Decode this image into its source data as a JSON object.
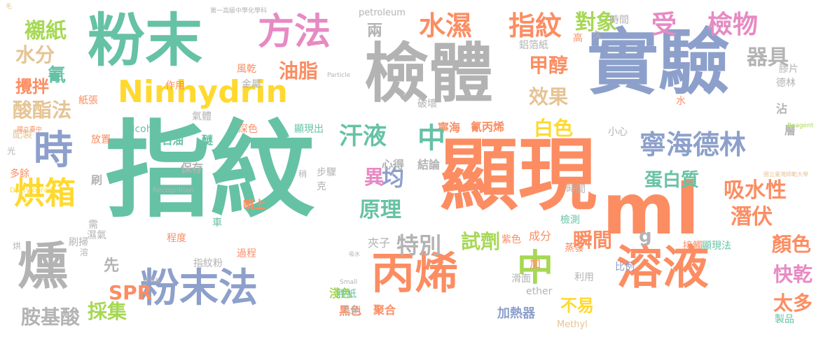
{
  "palette": {
    "green": "#66c2a5",
    "orange": "#fc8d62",
    "blue": "#8da0cb",
    "pink": "#e78ac3",
    "lime": "#a6d854",
    "yellow": "#ffd92f",
    "tan": "#e5c494",
    "gray": "#b3b3b3"
  },
  "words": [
    "指紋",
    "顯現",
    "實驗",
    "檢體",
    "粉末",
    "粉末法",
    "丙烯",
    "溶液",
    "ml",
    "中",
    "Ninhydrin",
    "方法",
    "時",
    "燻",
    "烘箱",
    "寧海德林",
    "水濕",
    "指紋",
    "受",
    "檢物",
    "器具",
    "對象",
    "襯紙",
    "水分",
    "酸酯法",
    "汗液",
    "白色",
    "甲醇",
    "效果",
    "油脂",
    "異",
    "均",
    "原理",
    "特別",
    "試劑",
    "吸水性",
    "潛伏",
    "顏色",
    "快乾",
    "太多",
    "SPR",
    "採集",
    "胺基酸",
    "蛋白質",
    "瞬間",
    "g",
    "氰",
    "攪拌",
    "不易",
    "兩",
    "時間",
    "配製",
    "先",
    "淺色",
    "黑色",
    "聚合",
    "加熱器",
    "製品",
    "沾",
    "層",
    "保存",
    "噴上",
    "刷",
    "多餘",
    "放置",
    "石油",
    "醚",
    "alcohol",
    "顯現出",
    "深色",
    "氣體",
    "金屬",
    "風乾",
    "作用",
    "紙張",
    "破壞",
    "鋁箔紙",
    "心得",
    "結論",
    "氰丙烯",
    "寧海",
    "中",
    "步驟",
    "克",
    "過程",
    "程度",
    "車",
    "濕氣",
    "刷掃",
    "指紋粉",
    "膠紙",
    "毛刷",
    "比例",
    "利用",
    "滑面",
    "紫色",
    "蒸發",
    "接觸",
    "顯現法",
    "加",
    "成分",
    "Methyl",
    "ether",
    "檢測",
    "小心",
    "高",
    "膠片",
    "德林",
    "久",
    "petroleum",
    "烘",
    "溶",
    "光",
    "稍",
    "Dactylogram",
    "Recognition",
    "Particle",
    "Small",
    "Reagent",
    "二",
    "水",
    "夾子",
    "需",
    "時間",
    "毛",
    "國立臺中",
    "第一高級中學化學科",
    "吸水",
    "化學系",
    "國立臺灣師範大學"
  ]
}
